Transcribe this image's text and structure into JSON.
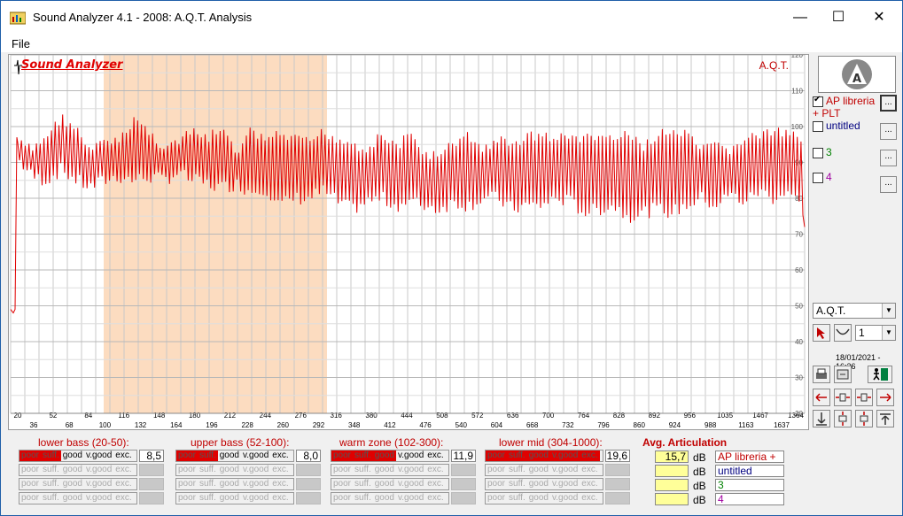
{
  "window": {
    "title": "Sound Analyzer 4.1 - 2008: A.Q.T. Analysis",
    "minimize": "—",
    "maximize": "☐",
    "close": "✕"
  },
  "menu": {
    "file": "File"
  },
  "chart": {
    "logo": "Sound Analyzer",
    "label": "A.Q.T."
  },
  "chart_data": {
    "type": "line",
    "title": "A.Q.T.",
    "y_ticks": [
      120,
      110,
      100,
      90,
      80,
      70,
      60,
      50,
      40,
      30,
      20
    ],
    "ylim": [
      20,
      120
    ],
    "x_ticks_top": [
      "20",
      "52",
      "84",
      "116",
      "148",
      "180",
      "212",
      "244",
      "276",
      "316",
      "380",
      "444",
      "508",
      "572",
      "636",
      "700",
      "764",
      "828",
      "892",
      "956",
      "1035",
      "1467",
      "1364"
    ],
    "x_ticks_bottom": [
      "36",
      "68",
      "100",
      "132",
      "164",
      "196",
      "228",
      "260",
      "292",
      "348",
      "412",
      "476",
      "540",
      "604",
      "668",
      "732",
      "796",
      "860",
      "924",
      "988",
      "1163",
      "1637"
    ],
    "highlight_range": [
      "100",
      "316"
    ],
    "grid": true,
    "series": [
      {
        "name": "AP libreria + PLT",
        "color": "#e00000",
        "envelope_upper": [
          49,
          49,
          97,
          95,
          99,
          104,
          101,
          94,
          98,
          97,
          104,
          100,
          96,
          97,
          100,
          98,
          101,
          94,
          100,
          98,
          99,
          98,
          97,
          100,
          98,
          97,
          95,
          99,
          96,
          99,
          94,
          93,
          97,
          99,
          95,
          98,
          96,
          99,
          99,
          98,
          99,
          98,
          99,
          98,
          99,
          96,
          99,
          100,
          99,
          95,
          96,
          95,
          98,
          99,
          100,
          99,
          98
        ],
        "envelope_lower": [
          48,
          48,
          89,
          84,
          83,
          86,
          83,
          81,
          83,
          84,
          83,
          84,
          83,
          85,
          83,
          82,
          81,
          82,
          80,
          81,
          76,
          78,
          78,
          80,
          77,
          75,
          77,
          78,
          76,
          77,
          76,
          75,
          77,
          76,
          78,
          78,
          75,
          76,
          76,
          78,
          77,
          74,
          75,
          76,
          73,
          74,
          75,
          74,
          76,
          78,
          76,
          79,
          77,
          80,
          78,
          80,
          75
        ]
      }
    ]
  },
  "legend": {
    "items": [
      {
        "label": "AP libreria + PLT",
        "color": "#c00000",
        "checked": true
      },
      {
        "label": "untitled",
        "color": "#000080",
        "checked": false
      },
      {
        "label": "3",
        "color": "#008000",
        "checked": false
      },
      {
        "label": "4",
        "color": "#a000a0",
        "checked": false
      }
    ],
    "btn": "..."
  },
  "controls": {
    "mode": "A.Q.T.",
    "num": "1",
    "date": "18/01/2021 - 16:36"
  },
  "zones": [
    {
      "title": "lower bass (20-50):",
      "value": "8,5",
      "fill": 2
    },
    {
      "title": "upper bass (52-100):",
      "value": "8,0",
      "fill": 2
    },
    {
      "title": "warm zone (102-300):",
      "value": "11,9",
      "fill": 3
    },
    {
      "title": "lower mid (304-1000):",
      "value": "19,6",
      "fill": 5
    }
  ],
  "grades": [
    "poor",
    "suff.",
    "good",
    "v.good",
    "exc."
  ],
  "avg": {
    "title": "Avg. Articulation",
    "unit": "dB",
    "rows": [
      {
        "value": "15,7",
        "name": "AP libreria +",
        "color": "#c00000"
      },
      {
        "value": "",
        "name": "untitled",
        "color": "#000080"
      },
      {
        "value": "",
        "name": "3",
        "color": "#008000"
      },
      {
        "value": "",
        "name": "4",
        "color": "#a000a0"
      }
    ]
  }
}
